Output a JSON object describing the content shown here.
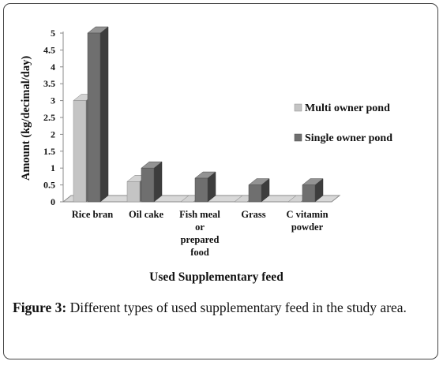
{
  "figure": {
    "label": "Figure 3:",
    "caption": "Different types of used supplementary feed in the study area."
  },
  "chart_data": {
    "type": "bar",
    "three_d": true,
    "categories": [
      [
        "Rice bran"
      ],
      [
        "Oil cake"
      ],
      [
        "Fish meal",
        "or",
        "prepared",
        "food"
      ],
      [
        "Grass"
      ],
      [
        "C vitamin",
        "powder"
      ]
    ],
    "series": [
      {
        "name": "Multi owner pond",
        "values": [
          3.0,
          0.6,
          0.0,
          0.0,
          0.0
        ],
        "color": "#c4c4c4"
      },
      {
        "name": "Single owner pond",
        "values": [
          5.0,
          1.0,
          0.7,
          0.5,
          0.5
        ],
        "color": "#6f6f6f"
      }
    ],
    "xlabel": "Used Supplementary  feed",
    "ylabel": "Amount  (kg/decimal/day)",
    "ylim": [
      0,
      5
    ],
    "yticks": [
      "0",
      "0.5",
      "1",
      "1.5",
      "2",
      "2.5",
      "3",
      "3.5",
      "4",
      "4.5",
      "5"
    ],
    "grid": false,
    "legend_position": "right"
  }
}
